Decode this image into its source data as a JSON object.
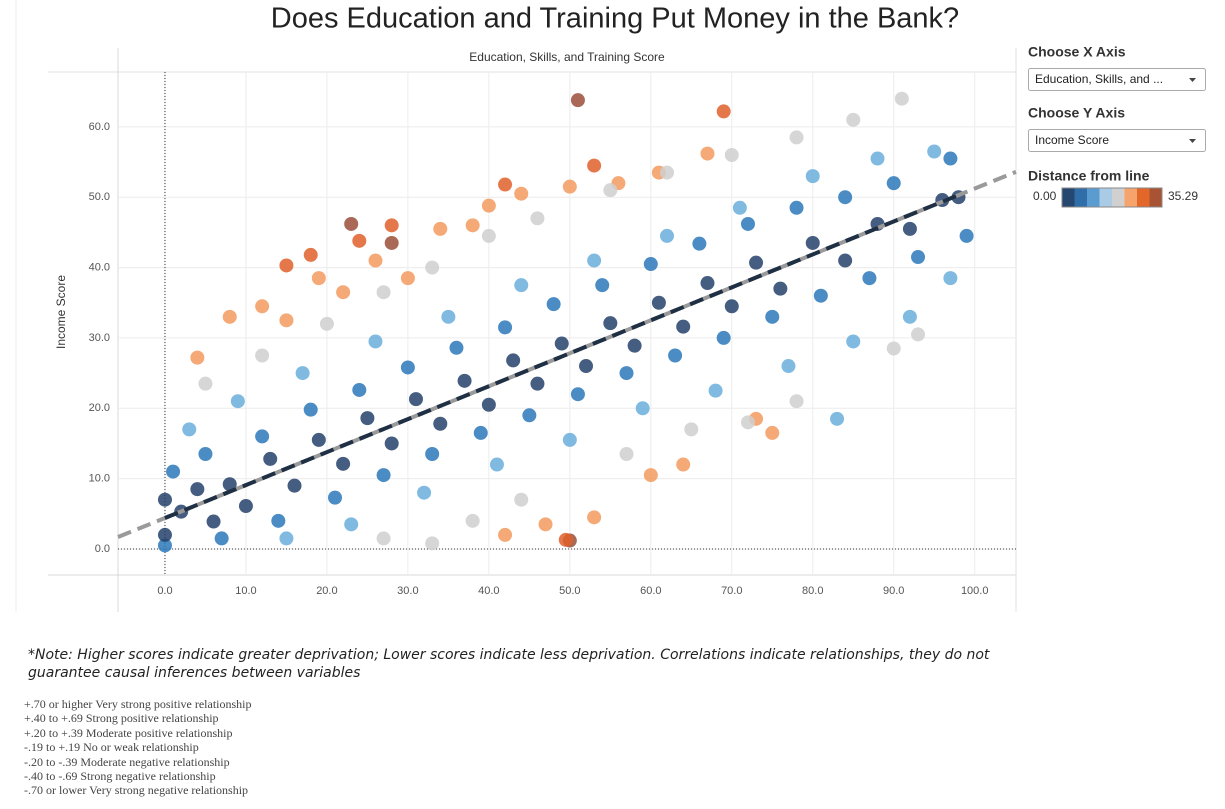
{
  "chart_data": {
    "type": "scatter",
    "title": "Does Education and Training Put Money in the Bank?",
    "x_label": "Education, Skills, and Training Score",
    "y_label": "Income Score",
    "xlim": [
      -5.8,
      105.1
    ],
    "ylim": [
      -3.7,
      67.8
    ],
    "xticks": [
      {
        "value": 0,
        "label": "0.0"
      },
      {
        "value": 10,
        "label": "10.0"
      },
      {
        "value": 20,
        "label": "20.0"
      },
      {
        "value": 30,
        "label": "30.0"
      },
      {
        "value": 40,
        "label": "40.0"
      },
      {
        "value": 50,
        "label": "50.0"
      },
      {
        "value": 60,
        "label": "60.0"
      },
      {
        "value": 70,
        "label": "70.0"
      },
      {
        "value": 80,
        "label": "80.0"
      },
      {
        "value": 90,
        "label": "90.0"
      },
      {
        "value": 100,
        "label": "100.0"
      }
    ],
    "yticks": [
      {
        "value": 0,
        "label": "0.0"
      },
      {
        "value": 10,
        "label": "10.0"
      },
      {
        "value": 20,
        "label": "20.0"
      },
      {
        "value": 30,
        "label": "30.0"
      },
      {
        "value": 40,
        "label": "40.0"
      },
      {
        "value": 50,
        "label": "50.0"
      },
      {
        "value": 60,
        "label": "60.0"
      }
    ],
    "grid": true,
    "series": [
      {
        "color": "#9b4f38",
        "x": [
          23,
          28,
          51,
          50
        ],
        "values": [
          46.2,
          43.5,
          63.8,
          1.2
        ]
      },
      {
        "color": "#e0602a",
        "x": [
          15,
          18,
          24,
          28,
          42,
          53,
          69,
          49.5
        ],
        "values": [
          40.3,
          41.8,
          43.8,
          46,
          51.8,
          54.5,
          62.2,
          1.3
        ]
      },
      {
        "color": "#f29a5e",
        "x": [
          4,
          8,
          12,
          15,
          19,
          22,
          26,
          30,
          34,
          38,
          40,
          44,
          50,
          56,
          61,
          67,
          42,
          47,
          53,
          60,
          64,
          73,
          75
        ],
        "values": [
          27.2,
          33,
          34.5,
          32.5,
          38.5,
          36.5,
          41,
          38.5,
          45.5,
          46,
          48.8,
          50.5,
          51.5,
          52,
          53.5,
          56.2,
          2,
          3.5,
          4.5,
          10.5,
          12,
          18.5,
          16.5
        ]
      },
      {
        "color": "#cfcfcf",
        "x": [
          5,
          12,
          20,
          27,
          33,
          40,
          46,
          55,
          62,
          70,
          78,
          85,
          91,
          27,
          33,
          38,
          44,
          57,
          65,
          72,
          78,
          90,
          93
        ],
        "values": [
          23.5,
          27.5,
          32,
          36.5,
          40,
          44.5,
          47,
          51,
          53.5,
          56,
          58.5,
          61,
          64,
          1.5,
          0.8,
          4,
          7,
          13.5,
          17,
          18,
          21,
          28.5,
          30.5
        ]
      },
      {
        "color": "#6aaedc",
        "x": [
          3,
          9,
          15,
          17,
          23,
          26,
          32,
          35,
          41,
          44,
          50,
          53,
          59,
          62,
          68,
          71,
          77,
          80,
          85,
          88,
          92,
          95,
          97,
          83
        ],
        "values": [
          17,
          21,
          1.5,
          25,
          3.5,
          29.5,
          8,
          33,
          12,
          37.5,
          15.5,
          41,
          20,
          44.5,
          22.5,
          48.5,
          26,
          53,
          29.5,
          55.5,
          33,
          56.5,
          38.5,
          18.5
        ]
      },
      {
        "color": "#2a78b8",
        "x": [
          0,
          1,
          5,
          7,
          12,
          14,
          18,
          21,
          24,
          27,
          30,
          33,
          36,
          39,
          42,
          45,
          48,
          51,
          54,
          57,
          60,
          63,
          66,
          69,
          72,
          75,
          78,
          81,
          84,
          87,
          90,
          93,
          97,
          99
        ],
        "values": [
          0.5,
          11,
          13.5,
          1.5,
          16,
          4,
          19.8,
          7.3,
          22.6,
          10.5,
          25.8,
          13.5,
          28.6,
          16.5,
          31.5,
          19,
          34.8,
          22,
          37.5,
          25,
          40.5,
          27.5,
          43.4,
          30,
          46.2,
          33,
          48.5,
          36,
          50,
          38.5,
          52,
          41.5,
          55.5,
          44.5
        ]
      },
      {
        "color": "#24416b",
        "x": [
          0,
          0,
          2,
          4,
          6,
          8,
          10,
          13,
          16,
          19,
          22,
          25,
          28,
          31,
          34,
          37,
          40,
          43,
          46,
          49,
          52,
          55,
          58,
          61,
          64,
          67,
          70,
          73,
          76,
          80,
          84,
          88,
          92,
          96,
          98
        ],
        "values": [
          2,
          7,
          5.3,
          8.5,
          3.9,
          9.2,
          6.1,
          12.8,
          9,
          15.5,
          12.1,
          18.6,
          15,
          21.3,
          17.8,
          23.9,
          20.5,
          26.8,
          23.5,
          29.2,
          26,
          32.1,
          28.9,
          35,
          31.6,
          37.8,
          34.5,
          40.7,
          37,
          43.5,
          41,
          46.2,
          45.5,
          49.6,
          50
        ]
      }
    ],
    "trend_line": {
      "x": [
        -5.8,
        0,
        98,
        105.1
      ],
      "y": [
        1.7,
        4.4,
        50.3,
        53.6
      ],
      "colors": [
        "#9a9a9a",
        "#1f2f44"
      ]
    },
    "controls": [
      {
        "label": "Choose X Axis",
        "selected": "Education, Skills, and ..."
      },
      {
        "label": "Choose Y Axis",
        "selected": "Income Score"
      }
    ],
    "color_legend": {
      "title": "Distance from line",
      "min": {
        "value": 0,
        "label": "0.00"
      },
      "max": 35.29,
      "colors": [
        "#264770",
        "#2f6ea9",
        "#5a9bd0",
        "#a9cbe6",
        "#d0d0d0",
        "#f7a46c",
        "#e4672a",
        "#a85434"
      ]
    },
    "note": "*Note: Higher scores indicate greater deprivation; Lower scores indicate less deprivation. Correlations indicate relationships, they do not guarantee causal inferences between variables",
    "scale_lines": [
      "+.70 or higher Very strong positive relationship",
      "+.40 to +.69 Strong positive relationship",
      "+.20 to +.39 Moderate positive relationship",
      "-.19 to +.19 No or weak relationship",
      "-.20 to -.39 Moderate negative relationship",
      "-.40 to -.69 Strong negative relationship",
      "-.70 or lower Very strong negative relationship"
    ]
  }
}
